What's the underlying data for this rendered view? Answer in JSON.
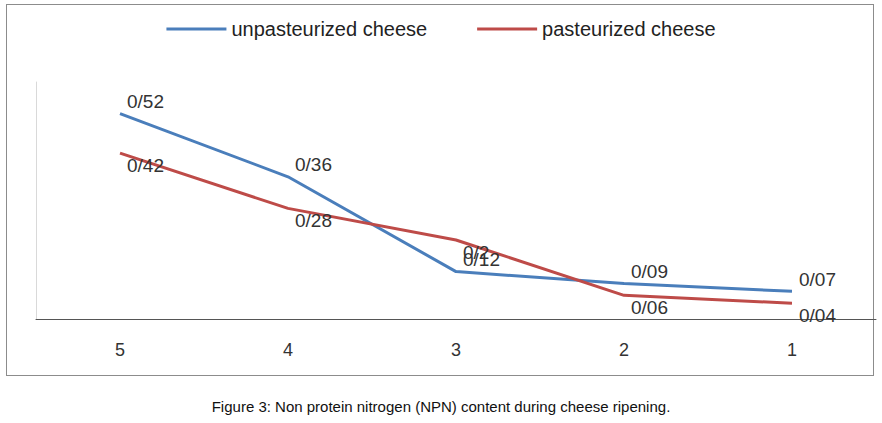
{
  "chart_data": {
    "type": "line",
    "caption": "Figure 3: Non protein nitrogen (NPN) content during cheese ripening.",
    "categories": [
      "5",
      "4",
      "3",
      "2",
      "1"
    ],
    "series": [
      {
        "name": "unpasteurized cheese",
        "color": "#4a7ebb",
        "values": [
          0.52,
          0.36,
          0.12,
          0.09,
          0.07
        ],
        "value_labels": [
          "0/52",
          "0/36",
          "0/12",
          "0/09",
          "0/07"
        ]
      },
      {
        "name": "pasteurized cheese",
        "color": "#be4b48",
        "values": [
          0.42,
          0.28,
          0.2,
          0.06,
          0.04
        ],
        "value_labels": [
          "0/42",
          "0/28",
          "0/2",
          "0/06",
          "0/04"
        ]
      }
    ],
    "ylim": [
      0,
      0.6
    ],
    "tick_labels": "x",
    "data_labels": true,
    "legend": "top",
    "grid": false,
    "marker": "none",
    "line_style": "solid"
  }
}
